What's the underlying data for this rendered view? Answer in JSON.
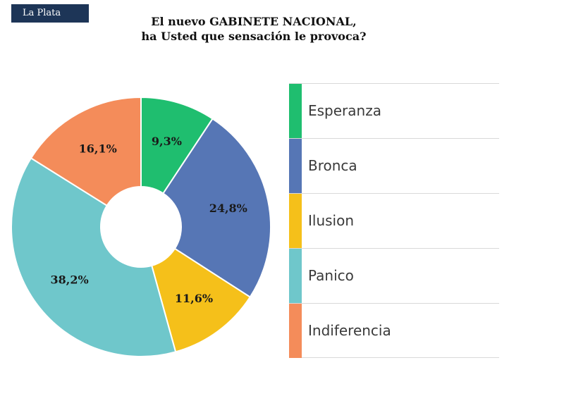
{
  "header": {
    "badge": "La Plata",
    "title_line1": "El nuevo GABINETE NACIONAL,",
    "title_line2": "ha Usted que sensación le provoca?"
  },
  "chart_data": {
    "type": "pie",
    "donut": true,
    "title": "El nuevo GABINETE NACIONAL, ha Usted que sensación le provoca?",
    "legend_position": "right",
    "categories": [
      "Esperanza",
      "Bronca",
      "Ilusion",
      "Panico",
      "Indiferencia"
    ],
    "values": [
      9.3,
      24.8,
      11.6,
      38.2,
      16.1
    ],
    "data_labels": [
      "9,3%",
      "24,8%",
      "11,6%",
      "38,2%",
      "16,1%"
    ],
    "colors": [
      "#1fbe6f",
      "#5676b5",
      "#f5c01a",
      "#6fc7cb",
      "#f48c5a"
    ]
  }
}
